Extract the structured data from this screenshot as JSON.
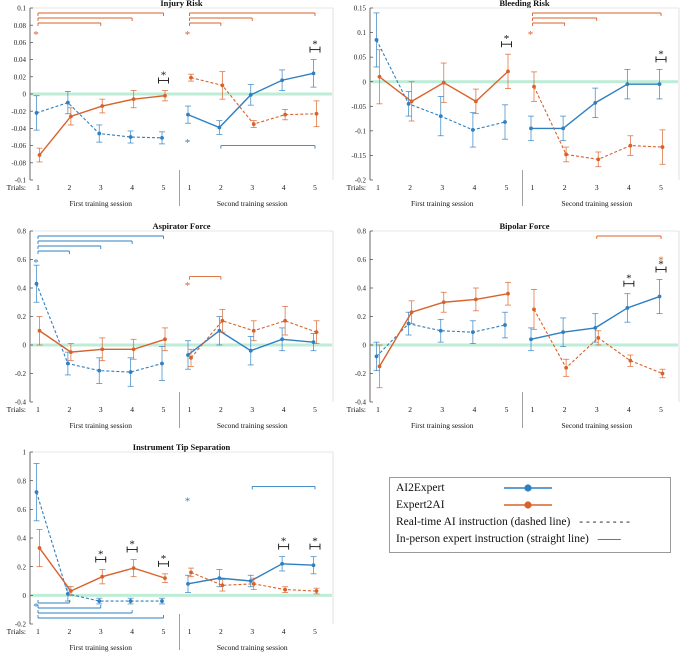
{
  "colors": {
    "ai2expert": "#2f7fc1",
    "expert2ai": "#d9622b",
    "baseline": "#a8e6c8",
    "sig": "#e03030"
  },
  "common": {
    "trials_label": "Trials:",
    "session1": "First training session",
    "session2": "Second training session",
    "star": "*"
  },
  "legend": {
    "items": [
      {
        "label": "AI2Expert",
        "series": "ai2expert"
      },
      {
        "label": "Expert2AI",
        "series": "expert2ai"
      },
      {
        "label": "Real-time AI instruction (dashed line)",
        "sample": "- - - - - - - -"
      },
      {
        "label": "In-person expert instruction (straight line)",
        "sample": "——"
      }
    ]
  },
  "chart_data": [
    {
      "type": "line",
      "title": "Injury Risk",
      "ylim": [
        -0.1,
        0.1
      ],
      "yticks": [
        "0.1",
        "0.08",
        "0.06",
        "0.04",
        "0.02",
        "0",
        "-0.02",
        "-0.04",
        "-0.06",
        "-0.08",
        "-0.1"
      ],
      "x": [
        1,
        2,
        3,
        4,
        5
      ],
      "series": [
        {
          "name": "AI2Expert",
          "session": 1,
          "dashed": true,
          "values": [
            -0.022,
            -0.01,
            -0.046,
            -0.05,
            -0.051
          ],
          "err": [
            0.02,
            0.013,
            0.01,
            0.007,
            0.007
          ]
        },
        {
          "name": "Expert2AI",
          "session": 1,
          "dashed": false,
          "values": [
            -0.071,
            -0.026,
            -0.014,
            -0.006,
            -0.002
          ],
          "err": [
            0.008,
            0.01,
            0.008,
            0.01,
            0.006
          ]
        },
        {
          "name": "AI2Expert",
          "session": 2,
          "dashed": false,
          "values": [
            -0.024,
            -0.039,
            -0.001,
            0.016,
            0.024
          ],
          "err": [
            0.01,
            0.008,
            0.012,
            0.012,
            0.016
          ]
        },
        {
          "name": "Expert2AI",
          "session": 2,
          "dashed": true,
          "values": [
            0.019,
            0.01,
            -0.035,
            -0.024,
            -0.023
          ],
          "err": [
            0.004,
            0.016,
            0.004,
            0.006,
            0.015
          ]
        }
      ],
      "pair_stars": [
        {
          "session": 1,
          "trial": 5
        },
        {
          "session": 2,
          "trial": 5
        }
      ],
      "brackets": [
        {
          "session": 1,
          "to_trial": 5,
          "color": "expert2ai",
          "pos": "top"
        },
        {
          "session": 1,
          "to_trial": 4,
          "color": "expert2ai",
          "pos": "top"
        },
        {
          "session": 1,
          "to_trial": 3,
          "color": "expert2ai",
          "pos": "top"
        },
        {
          "session": 2,
          "to_trial": 5,
          "color": "expert2ai",
          "pos": "top"
        },
        {
          "session": 2,
          "to_trial": 3,
          "color": "expert2ai",
          "pos": "top"
        },
        {
          "session": 2,
          "to_trial": 2,
          "color": "expert2ai",
          "pos": "top"
        },
        {
          "session": 2,
          "from_trial": 2,
          "to_trial": 5,
          "color": "ai2expert",
          "pos": "low",
          "y": -0.06
        }
      ],
      "bracket_stars": [
        {
          "session": 1,
          "color": "expert2ai",
          "pos": "top"
        },
        {
          "session": 2,
          "color": "expert2ai",
          "pos": "top"
        },
        {
          "session": 2,
          "color": "ai2expert",
          "pos": "low",
          "y": -0.056
        }
      ]
    },
    {
      "type": "line",
      "title": "Bleeding Risk",
      "ylim": [
        -0.2,
        0.15
      ],
      "yticks": [
        "0.15",
        "0.1",
        "0.05",
        "0",
        "-0.05",
        "-0.1",
        "-0.15",
        "-0.2"
      ],
      "x": [
        1,
        2,
        3,
        4,
        5
      ],
      "series": [
        {
          "name": "AI2Expert",
          "session": 1,
          "dashed": true,
          "values": [
            0.085,
            -0.045,
            -0.07,
            -0.098,
            -0.082
          ],
          "err": [
            0.055,
            0.025,
            0.04,
            0.035,
            0.035
          ]
        },
        {
          "name": "Expert2AI",
          "session": 1,
          "dashed": false,
          "values": [
            0.01,
            -0.04,
            -0.002,
            -0.04,
            0.021
          ],
          "err": [
            0.055,
            0.04,
            0.04,
            0.025,
            0.035
          ]
        },
        {
          "name": "AI2Expert",
          "session": 2,
          "dashed": false,
          "values": [
            -0.095,
            -0.095,
            -0.043,
            -0.005,
            -0.005
          ],
          "err": [
            0.025,
            0.025,
            0.03,
            0.03,
            0.03
          ]
        },
        {
          "name": "Expert2AI",
          "session": 2,
          "dashed": true,
          "values": [
            -0.01,
            -0.148,
            -0.158,
            -0.13,
            -0.133
          ],
          "err": [
            0.03,
            0.015,
            0.015,
            0.02,
            0.035
          ]
        }
      ],
      "pair_stars": [
        {
          "session": 1,
          "trial": 5
        },
        {
          "session": 2,
          "trial": 5
        }
      ],
      "brackets": [
        {
          "session": 2,
          "to_trial": 5,
          "color": "expert2ai",
          "pos": "top"
        },
        {
          "session": 2,
          "to_trial": 3,
          "color": "expert2ai",
          "pos": "top"
        },
        {
          "session": 2,
          "to_trial": 2,
          "color": "expert2ai",
          "pos": "top"
        }
      ],
      "bracket_stars": [
        {
          "session": 2,
          "color": "expert2ai",
          "pos": "top"
        }
      ]
    },
    {
      "type": "line",
      "title": "Aspirator Force",
      "ylim": [
        -0.4,
        0.8
      ],
      "yticks": [
        "0.8",
        "0.6",
        "0.4",
        "0.2",
        "0",
        "-0.2",
        "-0.4"
      ],
      "x": [
        1,
        2,
        3,
        4,
        5
      ],
      "series": [
        {
          "name": "AI2Expert",
          "session": 1,
          "dashed": true,
          "values": [
            0.43,
            -0.13,
            -0.18,
            -0.19,
            -0.13
          ],
          "err": [
            0.13,
            0.08,
            0.09,
            0.1,
            0.12
          ]
        },
        {
          "name": "Expert2AI",
          "session": 1,
          "dashed": false,
          "values": [
            0.1,
            -0.05,
            -0.03,
            -0.03,
            0.04
          ],
          "err": [
            0.1,
            0.06,
            0.08,
            0.07,
            0.08
          ]
        },
        {
          "name": "AI2Expert",
          "session": 2,
          "dashed": false,
          "values": [
            -0.07,
            0.1,
            -0.04,
            0.04,
            0.02
          ],
          "err": [
            0.1,
            0.1,
            0.1,
            0.08,
            0.06
          ]
        },
        {
          "name": "Expert2AI",
          "session": 2,
          "dashed": true,
          "values": [
            -0.09,
            0.17,
            0.1,
            0.17,
            0.09
          ],
          "err": [
            0.06,
            0.08,
            0.07,
            0.1,
            0.08
          ]
        }
      ],
      "pair_stars": [],
      "brackets": [
        {
          "session": 1,
          "to_trial": 5,
          "color": "ai2expert",
          "pos": "top"
        },
        {
          "session": 1,
          "to_trial": 4,
          "color": "ai2expert",
          "pos": "top"
        },
        {
          "session": 1,
          "to_trial": 3,
          "color": "ai2expert",
          "pos": "top"
        },
        {
          "session": 1,
          "to_trial": 2,
          "color": "ai2expert",
          "pos": "top"
        },
        {
          "session": 2,
          "to_trial": 2,
          "color": "expert2ai",
          "pos": "mid",
          "y": 0.48
        }
      ],
      "bracket_stars": [
        {
          "session": 1,
          "color": "ai2expert",
          "pos": "top"
        },
        {
          "session": 2,
          "color": "expert2ai",
          "pos": "mid",
          "y": 0.42
        }
      ]
    },
    {
      "type": "line",
      "title": "Bipolar Force",
      "ylim": [
        -0.4,
        0.8
      ],
      "yticks": [
        "0.8",
        "0.6",
        "0.4",
        "0.2",
        "0",
        "-0.2",
        "-0.4"
      ],
      "x": [
        1,
        2,
        3,
        4,
        5
      ],
      "series": [
        {
          "name": "AI2Expert",
          "session": 1,
          "dashed": true,
          "values": [
            -0.08,
            0.15,
            0.1,
            0.09,
            0.14
          ],
          "err": [
            0.1,
            0.08,
            0.08,
            0.08,
            0.09
          ]
        },
        {
          "name": "Expert2AI",
          "session": 1,
          "dashed": false,
          "values": [
            -0.15,
            0.23,
            0.3,
            0.32,
            0.36
          ],
          "err": [
            0.15,
            0.08,
            0.07,
            0.08,
            0.08
          ]
        },
        {
          "name": "AI2Expert",
          "session": 2,
          "dashed": false,
          "values": [
            0.04,
            0.09,
            0.12,
            0.26,
            0.34
          ],
          "err": [
            0.08,
            0.1,
            0.1,
            0.1,
            0.12
          ]
        },
        {
          "name": "Expert2AI",
          "session": 2,
          "dashed": true,
          "values": [
            0.25,
            -0.16,
            0.05,
            -0.11,
            -0.2
          ],
          "err": [
            0.14,
            0.06,
            0.05,
            0.04,
            0.03
          ]
        }
      ],
      "pair_stars": [
        {
          "session": 2,
          "trial": 4
        },
        {
          "session": 2,
          "trial": 5
        }
      ],
      "brackets": [
        {
          "session": 2,
          "from_trial": 3,
          "to_trial": 5,
          "color": "expert2ai",
          "pos": "top"
        }
      ],
      "bracket_stars": [
        {
          "session": 2,
          "color": "expert2ai",
          "pos": "end",
          "y": 0.6
        }
      ]
    },
    {
      "type": "line",
      "title": "Instrument Tip Separation",
      "ylim": [
        -0.2,
        1
      ],
      "yticks": [
        "1",
        "0.8",
        "0.6",
        "0.4",
        "0.2",
        "0",
        "-0.2"
      ],
      "x": [
        1,
        2,
        3,
        4,
        5
      ],
      "series": [
        {
          "name": "AI2Expert",
          "session": 1,
          "dashed": true,
          "values": [
            0.72,
            0.01,
            -0.04,
            -0.04,
            -0.04
          ],
          "err": [
            0.2,
            0.05,
            0.02,
            0.02,
            0.02
          ]
        },
        {
          "name": "Expert2AI",
          "session": 1,
          "dashed": false,
          "values": [
            0.33,
            0.03,
            0.13,
            0.19,
            0.12
          ],
          "err": [
            0.13,
            0.03,
            0.05,
            0.06,
            0.03
          ]
        },
        {
          "name": "AI2Expert",
          "session": 2,
          "dashed": false,
          "values": [
            0.08,
            0.12,
            0.1,
            0.22,
            0.21
          ],
          "err": [
            0.06,
            0.06,
            0.04,
            0.05,
            0.06
          ]
        },
        {
          "name": "Expert2AI",
          "session": 2,
          "dashed": true,
          "values": [
            0.16,
            0.07,
            0.08,
            0.04,
            0.03
          ],
          "err": [
            0.03,
            0.04,
            0.04,
            0.02,
            0.02
          ]
        }
      ],
      "pair_stars": [
        {
          "session": 1,
          "trial": 3
        },
        {
          "session": 1,
          "trial": 4
        },
        {
          "session": 1,
          "trial": 5
        },
        {
          "session": 2,
          "trial": 4
        },
        {
          "session": 2,
          "trial": 5
        }
      ],
      "brackets": [
        {
          "session": 1,
          "to_trial": 2,
          "color": "ai2expert",
          "pos": "bottom",
          "row": 0
        },
        {
          "session": 1,
          "to_trial": 3,
          "color": "ai2expert",
          "pos": "bottom",
          "row": 1
        },
        {
          "session": 1,
          "to_trial": 4,
          "color": "ai2expert",
          "pos": "bottom",
          "row": 2
        },
        {
          "session": 1,
          "to_trial": 5,
          "color": "ai2expert",
          "pos": "bottom",
          "row": 3
        },
        {
          "session": 2,
          "from_trial": 3,
          "to_trial": 5,
          "color": "ai2expert",
          "pos": "mid",
          "y": 0.76
        }
      ],
      "bracket_stars": [
        {
          "session": 1,
          "color": "ai2expert",
          "pos": "bottom"
        },
        {
          "session": 2,
          "color": "ai2expert",
          "pos": "mid",
          "y": 0.66
        }
      ]
    }
  ]
}
